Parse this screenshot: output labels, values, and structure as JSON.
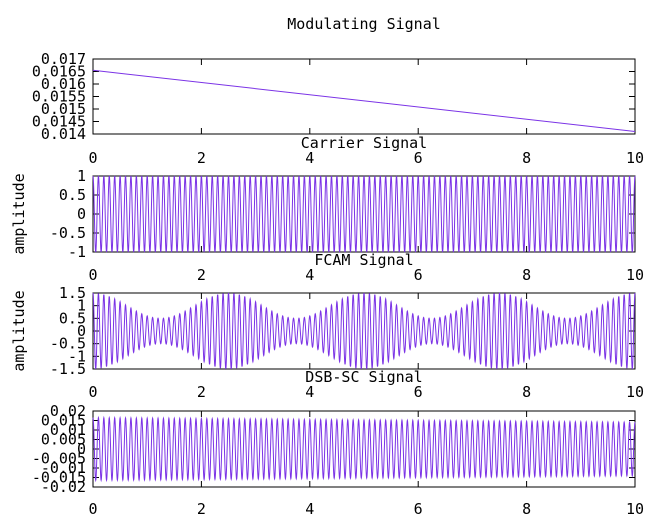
{
  "colors": {
    "trace": "#7b33e6",
    "axis": "#000000"
  },
  "chart_data": [
    {
      "type": "line",
      "title": "Modulating Signal",
      "ylabel": "",
      "xlim": [
        0,
        10
      ],
      "ylim": [
        0.014,
        0.017
      ],
      "x_ticks": [
        "0",
        "2",
        "4",
        "6",
        "8",
        "10"
      ],
      "y_ticks": [
        "0.017",
        "0.0165",
        "0.016",
        "0.0155",
        "0.015",
        "0.0145",
        "0.014"
      ],
      "grid": false,
      "series": [
        {
          "kind": "linear",
          "x": [
            0,
            10
          ],
          "y": [
            0.01655,
            0.0141
          ]
        }
      ]
    },
    {
      "type": "line",
      "title": "Carrier Signal",
      "ylabel": "amplitude",
      "xlim": [
        0,
        10
      ],
      "ylim": [
        -1,
        1
      ],
      "x_ticks": [
        "0",
        "2",
        "4",
        "6",
        "8",
        "10"
      ],
      "y_ticks": [
        "1",
        "0.5",
        "0",
        "-0.5",
        "-1"
      ],
      "grid": false,
      "series": [
        {
          "kind": "sine",
          "amplitude": 1,
          "cycles": 100
        }
      ]
    },
    {
      "type": "line",
      "title": "FCAM Signal",
      "ylabel": "amplitude",
      "xlim": [
        0,
        10
      ],
      "ylim": [
        -1.5,
        1.5
      ],
      "x_ticks": [
        "0",
        "2",
        "4",
        "6",
        "8",
        "10"
      ],
      "y_ticks": [
        "1.5",
        "1",
        "0.5",
        "0",
        "-0.5",
        "-1",
        "-1.5"
      ],
      "grid": false,
      "series": [
        {
          "kind": "am",
          "carrier_cycles": 100,
          "base_amplitude": 1,
          "modulation_index": 0.5,
          "envelope_cycles": 4
        }
      ]
    },
    {
      "type": "line",
      "title": "DSB-SC Signal",
      "ylabel": "",
      "xlim": [
        0,
        10
      ],
      "ylim": [
        -0.02,
        0.02
      ],
      "x_ticks": [
        "0",
        "2",
        "4",
        "6",
        "8",
        "10"
      ],
      "y_ticks": [
        "0.02",
        "0.015",
        "0.01",
        "0.005",
        "0",
        "-0.005",
        "-0.01",
        "-0.015",
        "-0.02"
      ],
      "grid": false,
      "series": [
        {
          "kind": "dsb",
          "carrier_cycles": 100,
          "envelope_start": 0.0165,
          "envelope_end": 0.0141
        }
      ]
    }
  ]
}
